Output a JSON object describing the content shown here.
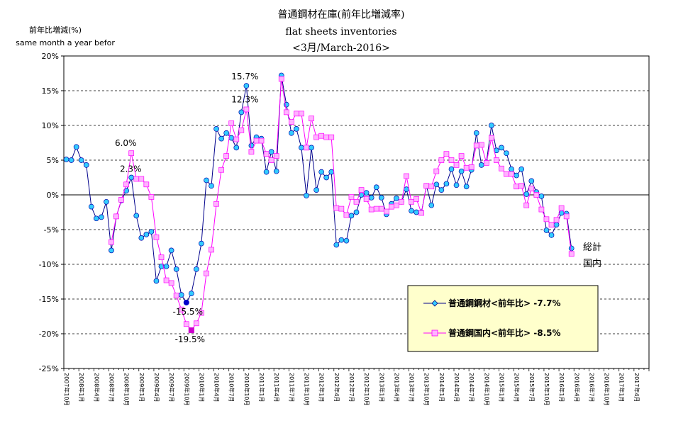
{
  "chart_data": {
    "type": "line",
    "title": "普通鋼材在庫(前年比増減率)",
    "subtitle": "flat sheets inventories",
    "subtitle2": "<3月/March-2016>",
    "ylabel": "前年比増減(%)",
    "ylabel2": "same month a year befor",
    "ylim": [
      -25,
      20
    ],
    "yticks": [
      "20%",
      "15%",
      "10%",
      "5%",
      "0%",
      "-5%",
      "-10%",
      "-15%",
      "-20%",
      "-25%"
    ],
    "grid": true,
    "x_tick_labels": [
      "2007年10月",
      "2008年1月",
      "2008年4月",
      "2008年7月",
      "2008年10月",
      "2009年1月",
      "2009年4月",
      "2009年7月",
      "2009年10月",
      "2010年1月",
      "2010年4月",
      "2010年7月",
      "2010年10月",
      "2011年1月",
      "2011年4月",
      "2011年7月",
      "2011年10月",
      "2012年1月",
      "2012年4月",
      "2012年7月",
      "2012年10月",
      "2013年1月",
      "2013年4月",
      "2013年7月",
      "2013年10月",
      "2014年1月",
      "2014年4月",
      "2014年7月",
      "2014年10月",
      "2015年1月",
      "2015年4月",
      "2015年7月",
      "2015年10月",
      "2016年1月",
      "2016年4月",
      "2016年7月",
      "2016年10月",
      "2017年1月",
      "2017年4月"
    ],
    "legend_position": "bottom-right",
    "series": [
      {
        "name": "普通鋼鋼材<前年比> -7.7%",
        "color": "#00008b",
        "marker_color": "#33ccff",
        "marker": "diamond",
        "start_index": 0,
        "values": [
          5.1,
          5.0,
          6.9,
          5.0,
          4.3,
          -1.7,
          -3.4,
          -3.2,
          -1.0,
          -8.0,
          -3.1,
          -0.8,
          0.6,
          2.5,
          -3.0,
          -6.2,
          -5.7,
          -5.3,
          -12.4,
          -10.3,
          -10.3,
          -8.0,
          -10.7,
          -14.4,
          -15.5,
          -14.2,
          -10.7,
          -7.0,
          2.1,
          1.3,
          9.5,
          8.1,
          8.9,
          8.2,
          6.8,
          11.9,
          15.7,
          7.1,
          8.3,
          8.1,
          3.3,
          6.2,
          3.4,
          17.2,
          13.0,
          8.9,
          9.5,
          6.8,
          -0.1,
          6.8,
          0.7,
          3.3,
          2.5,
          3.3,
          -7.2,
          -6.5,
          -6.6,
          -3.0,
          -2.5,
          0.0,
          0.3,
          -0.4,
          1.1,
          -0.4,
          -2.8,
          -1.3,
          -0.5,
          -1.0,
          0.8,
          -2.3,
          -2.5,
          -2.5,
          1.3,
          -1.5,
          1.5,
          0.7,
          1.6,
          3.7,
          1.4,
          3.4,
          1.2,
          3.6,
          8.9,
          4.3,
          4.7,
          10.0,
          6.4,
          6.8,
          6.0,
          3.7,
          2.8,
          3.7,
          0.1,
          2.0,
          0.4,
          -0.2,
          -5.1,
          -5.8,
          -4.3,
          -2.6,
          -2.7,
          -7.7
        ]
      },
      {
        "name": "普通鋼国内<前年比> -8.5%",
        "color": "#ff00ff",
        "marker_color": "#ffb3ff",
        "marker": "square",
        "start_index": 9,
        "values": [
          -6.8,
          -3.1,
          -0.7,
          1.5,
          6.0,
          2.3,
          2.3,
          1.5,
          -0.3,
          -6.1,
          -9.0,
          -12.3,
          -12.7,
          -14.5,
          -16.5,
          -18.6,
          -19.5,
          -18.5,
          -17.0,
          -11.3,
          -7.9,
          -1.3,
          3.6,
          5.6,
          10.3,
          8.0,
          9.3,
          12.3,
          6.2,
          7.8,
          7.8,
          5.9,
          5.0,
          5.6,
          16.7,
          11.9,
          10.5,
          11.7,
          11.7,
          6.8,
          11.0,
          8.3,
          8.5,
          8.3,
          8.3,
          -1.9,
          -2.0,
          -2.9,
          -0.3,
          -1.0,
          0.7,
          -0.6,
          -2.1,
          -2.0,
          -2.0,
          -2.4,
          -1.7,
          -1.5,
          -1.0,
          2.7,
          -1.0,
          -0.6,
          -2.6,
          1.3,
          1.2,
          3.4,
          5.0,
          5.9,
          5.0,
          4.3,
          5.6,
          3.9,
          4.0,
          7.1,
          7.2,
          4.6,
          8.2,
          5.0,
          3.8,
          3.0,
          3.0,
          1.2,
          1.3,
          -1.5,
          0.9,
          0.0,
          -2.1,
          -3.5,
          -4.3,
          -3.6,
          -1.9,
          -3.1,
          -8.5
        ]
      }
    ],
    "annotations": [
      {
        "text": "15.7%",
        "series": 0,
        "index": 36
      },
      {
        "text": "12.3%",
        "series": 1,
        "index": 27
      },
      {
        "text": "6.0%",
        "series": 1,
        "index": 4
      },
      {
        "text": "2.3%",
        "series": 1,
        "index": 5
      },
      {
        "text": "-15.5%",
        "series": 0,
        "index": 24
      },
      {
        "text": "-19.5%",
        "series": 1,
        "index": 16
      }
    ],
    "side_labels": [
      "総計",
      "国内"
    ]
  }
}
